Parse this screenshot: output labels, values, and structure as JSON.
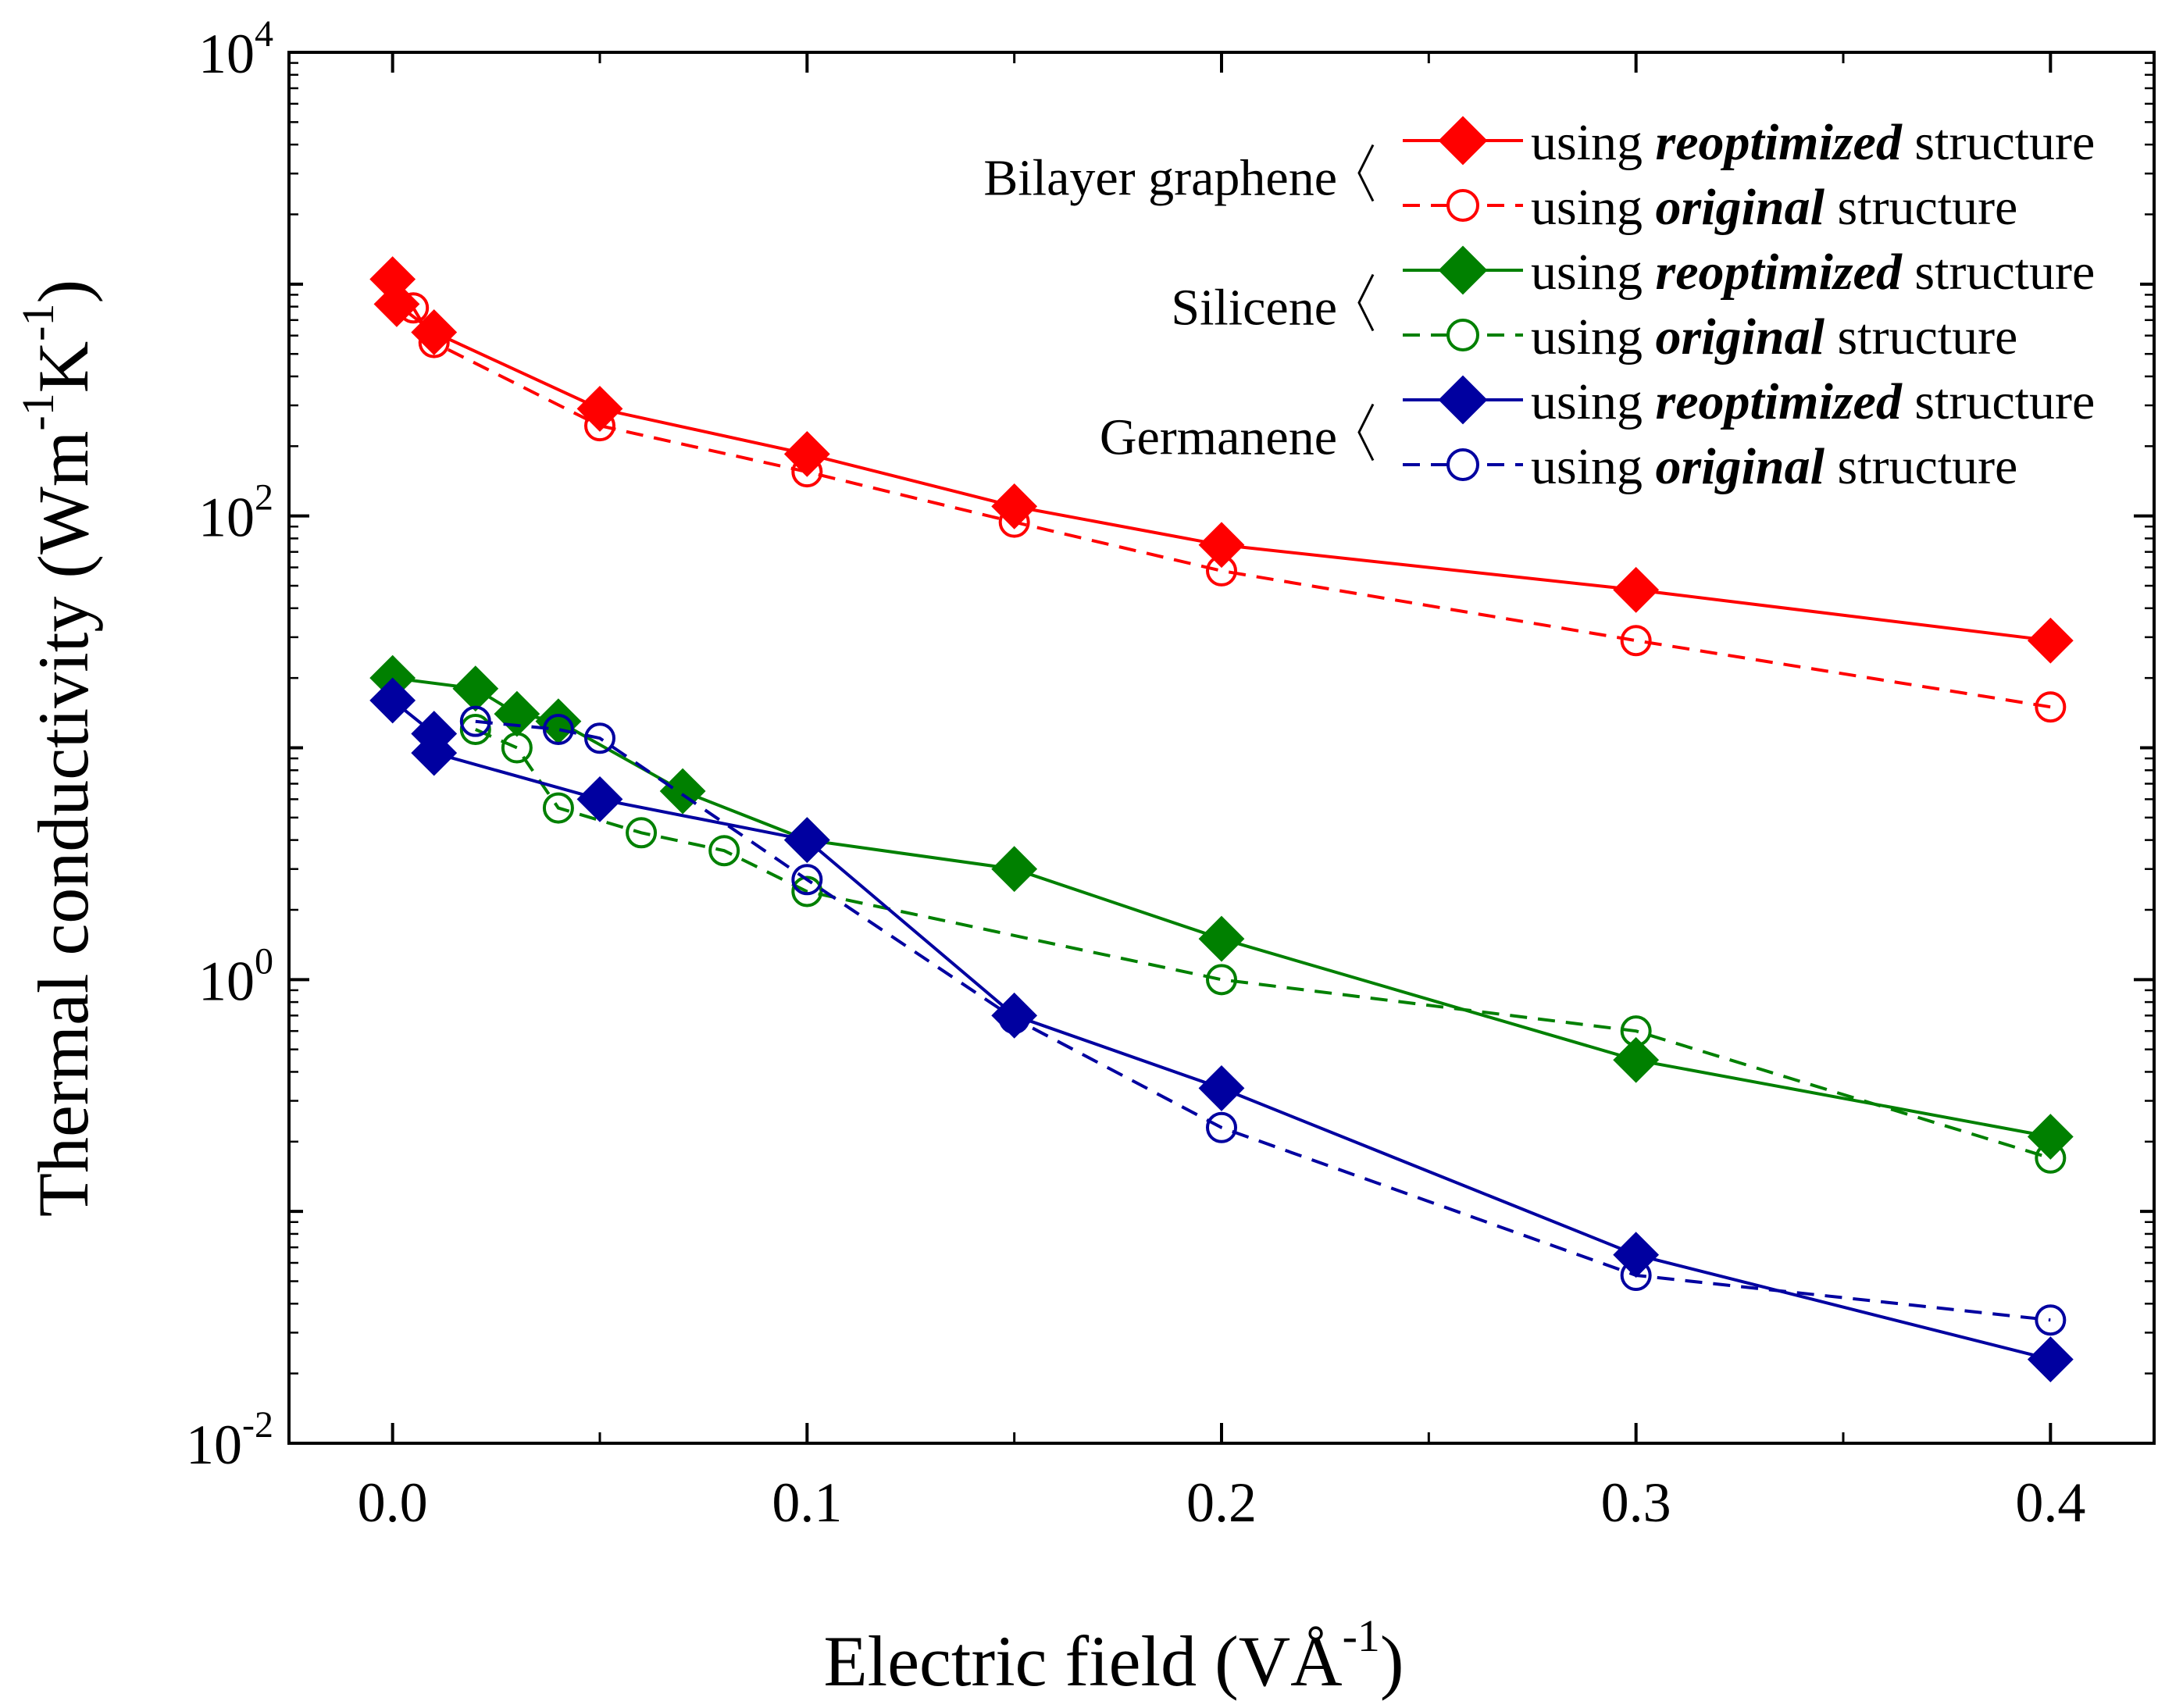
{
  "chart_data": {
    "type": "line",
    "yscale": "log",
    "xlabel": "Electric field (VÅ",
    "xlabel_sup": "-1",
    "xlabel_end": ")",
    "ylabel": "Thermal conductivity (Wm",
    "ylabel_sup1": "-1",
    "ylabel_mid": "K",
    "ylabel_sup2": "-1",
    "ylabel_end": ")",
    "xlim": [
      -0.025,
      0.425
    ],
    "ylim": [
      0.01,
      10000
    ],
    "x_ticks": [
      {
        "value": 0.0,
        "label": "0.0"
      },
      {
        "value": 0.1,
        "label": "0.1"
      },
      {
        "value": 0.2,
        "label": "0.2"
      },
      {
        "value": 0.3,
        "label": "0.3"
      },
      {
        "value": 0.4,
        "label": "0.4"
      }
    ],
    "y_ticks": [
      {
        "value": 10000,
        "base": "10",
        "exp": "4"
      },
      {
        "value": 100,
        "base": "10",
        "exp": "2"
      },
      {
        "value": 1,
        "base": "10",
        "exp": "0"
      },
      {
        "value": 0.01,
        "base": "10",
        "exp": "-2"
      }
    ],
    "series": [
      {
        "material": "Bilayer graphene",
        "structure": "reoptimized",
        "color": "#ff0000",
        "marker": "diamond",
        "line": "solid",
        "x": [
          0.0,
          0.001,
          0.01,
          0.05,
          0.1,
          0.15,
          0.2,
          0.3,
          0.4
        ],
        "y": [
          1050,
          820,
          620,
          290,
          185,
          110,
          75,
          48,
          29
        ]
      },
      {
        "material": "Bilayer graphene",
        "structure": "original",
        "color": "#ff0000",
        "marker": "circle",
        "line": "dashed",
        "x": [
          0.005,
          0.01,
          0.05,
          0.1,
          0.15,
          0.2,
          0.3,
          0.4
        ],
        "y": [
          790,
          560,
          245,
          155,
          94,
          58,
          29,
          15
        ]
      },
      {
        "material": "Silicene",
        "structure": "reoptimized",
        "color": "#008000",
        "marker": "diamond",
        "line": "solid",
        "x": [
          0.0,
          0.02,
          0.03,
          0.04,
          0.07,
          0.1,
          0.15,
          0.2,
          0.3,
          0.4
        ],
        "y": [
          20,
          18,
          14,
          13,
          6.5,
          4,
          3,
          1.5,
          0.45,
          0.21
        ]
      },
      {
        "material": "Silicene",
        "structure": "original",
        "color": "#008000",
        "marker": "circle",
        "line": "dashed",
        "x": [
          0.02,
          0.03,
          0.04,
          0.06,
          0.08,
          0.1,
          0.2,
          0.3,
          0.4
        ],
        "y": [
          12,
          10,
          5.5,
          4.3,
          3.6,
          2.4,
          1.0,
          0.6,
          0.17
        ]
      },
      {
        "material": "Germanene",
        "structure": "reoptimized",
        "color": "#0000a0",
        "marker": "diamond",
        "line": "solid",
        "x": [
          0.0,
          0.01,
          0.01,
          0.05,
          0.1,
          0.15,
          0.2,
          0.3,
          0.4
        ],
        "y": [
          16,
          11.5,
          9.5,
          6,
          4,
          0.7,
          0.34,
          0.065,
          0.023
        ]
      },
      {
        "material": "Germanene",
        "structure": "original",
        "color": "#0000a0",
        "marker": "circle",
        "line": "dashed",
        "x": [
          0.02,
          0.04,
          0.05,
          0.1,
          0.15,
          0.2,
          0.3,
          0.4
        ],
        "y": [
          13,
          12,
          11,
          2.7,
          0.68,
          0.23,
          0.053,
          0.034
        ]
      }
    ],
    "legend": {
      "position": "top-right",
      "groups": [
        {
          "label": "Bilayer graphene",
          "entries": [
            {
              "prefix": "using ",
              "emph": "reoptimized",
              "suffix": " structure",
              "color": "#ff0000",
              "marker": "diamond",
              "line": "solid"
            },
            {
              "prefix": "using ",
              "emph": "original",
              "suffix": " structure",
              "color": "#ff0000",
              "marker": "circle",
              "line": "dashed"
            }
          ]
        },
        {
          "label": "Silicene",
          "entries": [
            {
              "prefix": "using ",
              "emph": "reoptimized",
              "suffix": " structure",
              "color": "#008000",
              "marker": "diamond",
              "line": "solid"
            },
            {
              "prefix": "using ",
              "emph": "original",
              "suffix": " structure",
              "color": "#008000",
              "marker": "circle",
              "line": "dashed"
            }
          ]
        },
        {
          "label": "Germanene",
          "entries": [
            {
              "prefix": "using ",
              "emph": "reoptimized",
              "suffix": " structure",
              "color": "#0000a0",
              "marker": "diamond",
              "line": "solid"
            },
            {
              "prefix": "using ",
              "emph": "original",
              "suffix": " structure",
              "color": "#0000a0",
              "marker": "circle",
              "line": "dashed"
            }
          ]
        }
      ]
    }
  }
}
